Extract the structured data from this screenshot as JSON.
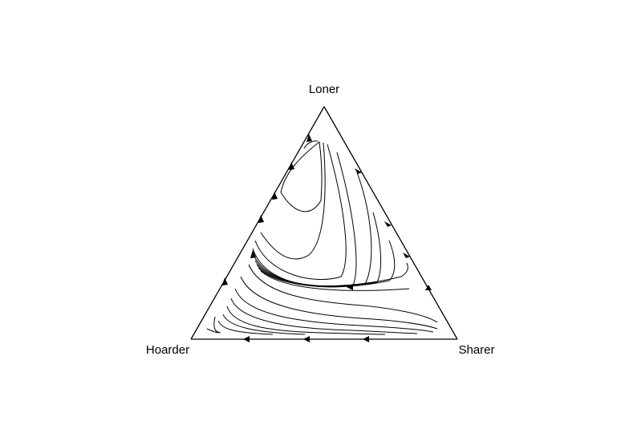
{
  "diagram": {
    "type": "ternary-phase-portrait",
    "vertices": {
      "top": "Loner",
      "left": "Hoarder",
      "right": "Sharer"
    },
    "edge_flow": {
      "hoarder_to_loner": "toward Loner",
      "loner_to_sharer": "toward Sharer",
      "sharer_to_hoarder": "toward Hoarder"
    },
    "line_color": "#000000",
    "background": "#ffffff"
  }
}
